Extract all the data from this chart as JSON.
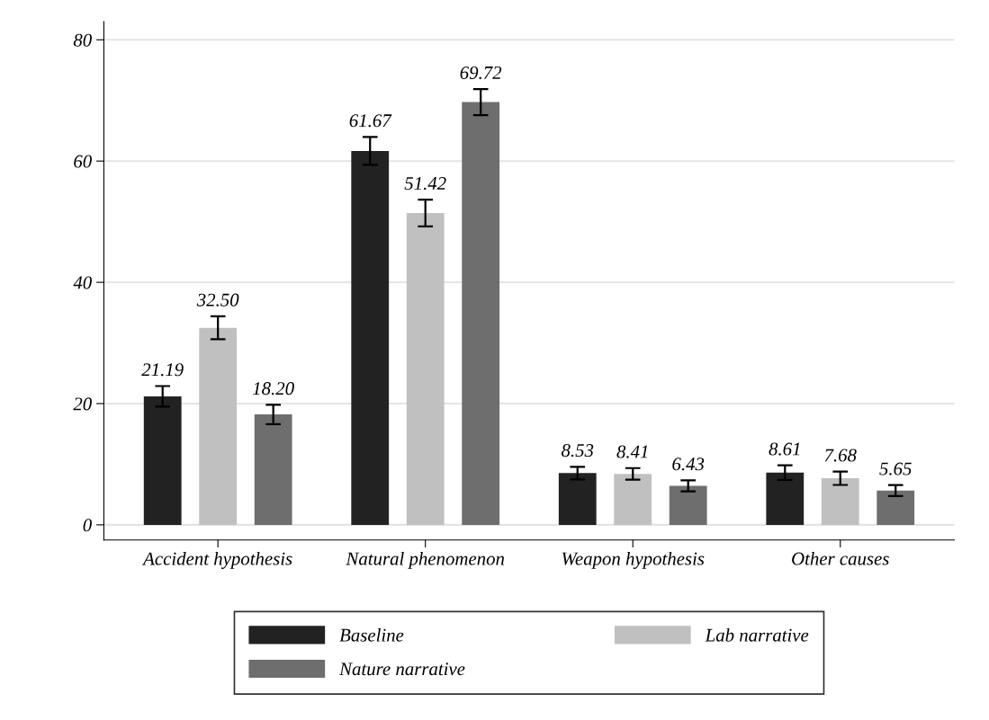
{
  "chart_data": {
    "type": "bar",
    "categories": [
      "Accident hypothesis",
      "Natural phenomenon",
      "Weapon hypothesis",
      "Other causes"
    ],
    "series": [
      {
        "name": "Baseline",
        "color": "#222222",
        "values": [
          21.19,
          61.67,
          8.53,
          8.61
        ],
        "value_labels": [
          "21.19",
          "61.67",
          "8.53",
          "8.61"
        ],
        "errors": [
          1.7,
          2.3,
          1.05,
          1.2
        ]
      },
      {
        "name": "Lab narrative",
        "color": "#c0c0c0",
        "values": [
          32.5,
          51.42,
          8.41,
          7.68
        ],
        "value_labels": [
          "32.50",
          "51.42",
          "8.41",
          "7.68"
        ],
        "errors": [
          1.9,
          2.2,
          0.95,
          1.1
        ]
      },
      {
        "name": "Nature narrative",
        "color": "#6e6e6e",
        "values": [
          18.2,
          69.72,
          6.43,
          5.65
        ],
        "value_labels": [
          "18.20",
          "69.72",
          "6.43",
          "5.65"
        ],
        "errors": [
          1.6,
          2.15,
          0.9,
          0.9
        ]
      }
    ],
    "ylim": [
      -2.5,
      83
    ],
    "yticks": [
      0,
      20,
      40,
      60,
      80
    ],
    "grid": "y",
    "legend": "bottom",
    "data_labels": true
  }
}
